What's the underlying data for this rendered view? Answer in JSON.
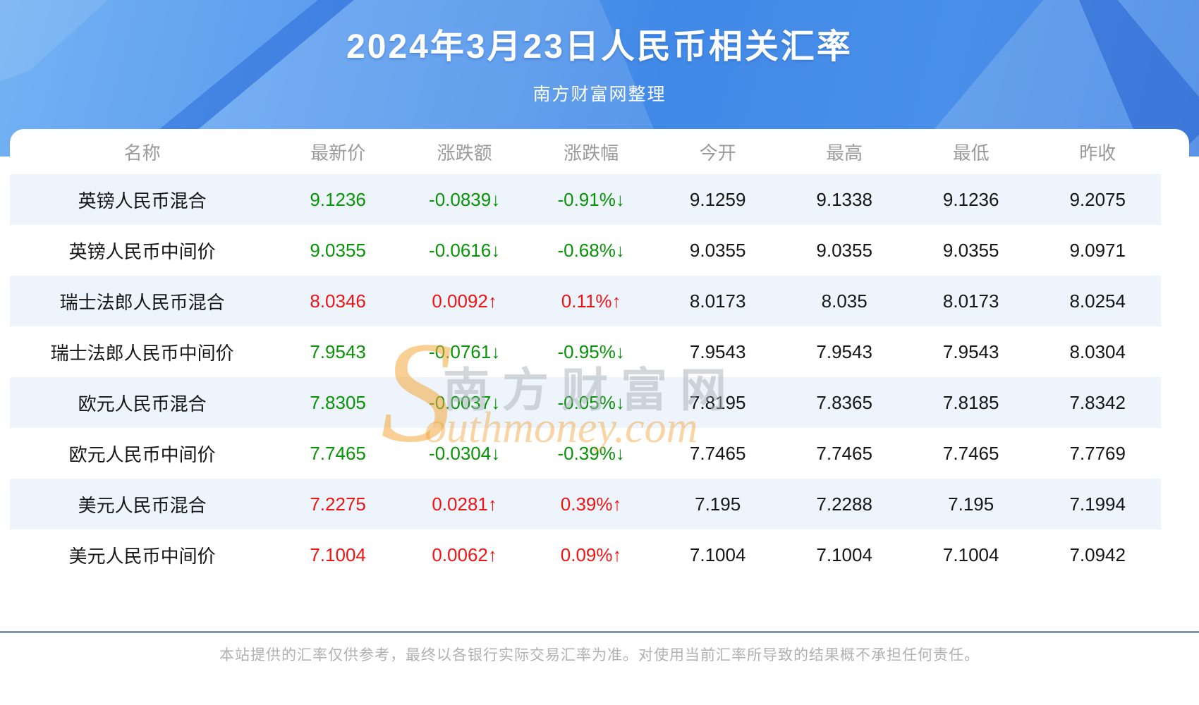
{
  "header": {
    "title": "2024年3月23日人民币相关汇率",
    "subtitle": "南方财富网整理"
  },
  "table": {
    "columns": [
      "名称",
      "最新价",
      "涨跌额",
      "涨跌幅",
      "今开",
      "最高",
      "最低",
      "昨收"
    ],
    "rows": [
      {
        "name": "英镑人民币混合",
        "latest": "9.1236",
        "change": "-0.0839↓",
        "change_pct": "-0.91%↓",
        "open": "9.1259",
        "high": "9.1338",
        "low": "9.1236",
        "prev_close": "9.2075",
        "direction": "down"
      },
      {
        "name": "英镑人民币中间价",
        "latest": "9.0355",
        "change": "-0.0616↓",
        "change_pct": "-0.68%↓",
        "open": "9.0355",
        "high": "9.0355",
        "low": "9.0355",
        "prev_close": "9.0971",
        "direction": "down"
      },
      {
        "name": "瑞士法郎人民币混合",
        "latest": "8.0346",
        "change": "0.0092↑",
        "change_pct": "0.11%↑",
        "open": "8.0173",
        "high": "8.035",
        "low": "8.0173",
        "prev_close": "8.0254",
        "direction": "up"
      },
      {
        "name": "瑞士法郎人民币中间价",
        "latest": "7.9543",
        "change": "-0.0761↓",
        "change_pct": "-0.95%↓",
        "open": "7.9543",
        "high": "7.9543",
        "low": "7.9543",
        "prev_close": "8.0304",
        "direction": "down"
      },
      {
        "name": "欧元人民币混合",
        "latest": "7.8305",
        "change": "-0.0037↓",
        "change_pct": "-0.05%↓",
        "open": "7.8195",
        "high": "7.8365",
        "low": "7.8185",
        "prev_close": "7.8342",
        "direction": "down"
      },
      {
        "name": "欧元人民币中间价",
        "latest": "7.7465",
        "change": "-0.0304↓",
        "change_pct": "-0.39%↓",
        "open": "7.7465",
        "high": "7.7465",
        "low": "7.7465",
        "prev_close": "7.7769",
        "direction": "down"
      },
      {
        "name": "美元人民币混合",
        "latest": "7.2275",
        "change": "0.0281↑",
        "change_pct": "0.39%↑",
        "open": "7.195",
        "high": "7.2288",
        "low": "7.195",
        "prev_close": "7.1994",
        "direction": "up"
      },
      {
        "name": "美元人民币中间价",
        "latest": "7.1004",
        "change": "0.0062↑",
        "change_pct": "0.09%↑",
        "open": "7.1004",
        "high": "7.1004",
        "low": "7.1004",
        "prev_close": "7.0942",
        "direction": "up"
      }
    ]
  },
  "watermark": {
    "swoosh": "S",
    "cn": "南方财富网",
    "en": "outhmoney.com"
  },
  "footer": {
    "disclaimer": "本站提供的汇率仅供参考，最终以各银行实际交易汇率为准。对使用当前汇率所导致的结果概不承担任何责任。"
  },
  "colors": {
    "up_red": "#f01414",
    "down_green": "#079407",
    "hero_blue": "#4a90ea",
    "stripe_blue": "#edf4fc",
    "divider_slate": "#7e95ab",
    "muted_text": "#9a9a9a"
  }
}
